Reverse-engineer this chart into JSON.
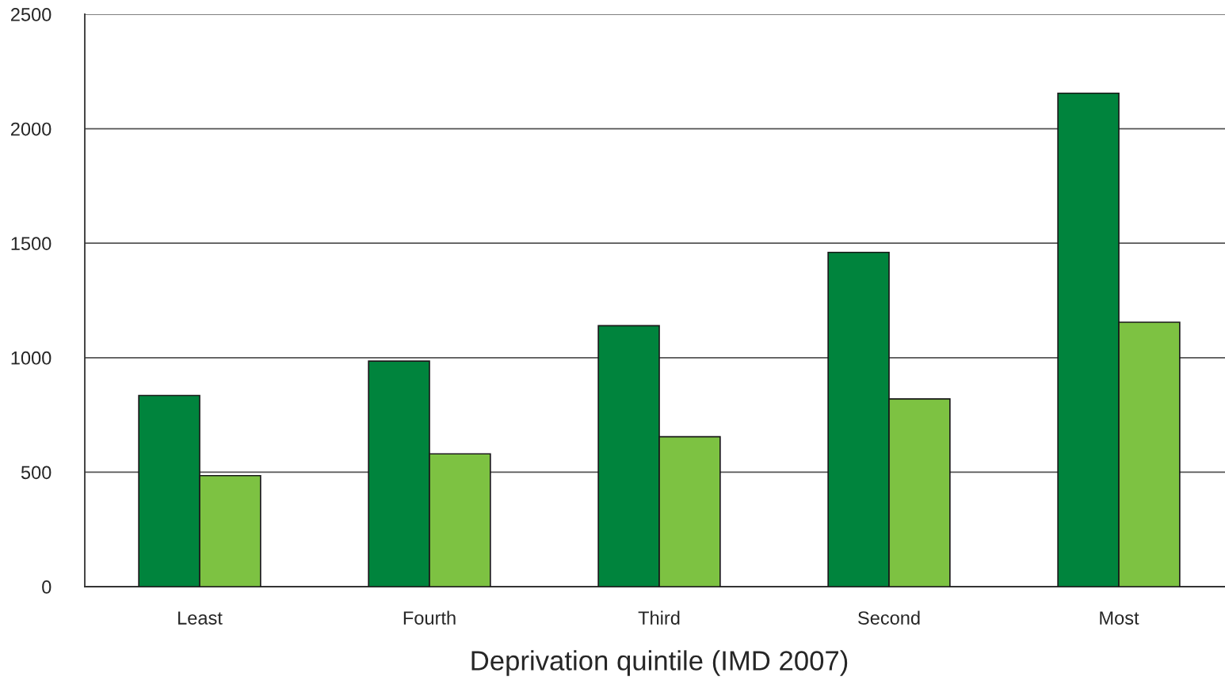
{
  "chart_data": {
    "type": "bar",
    "xlabel": "Deprivation quintile (IMD 2007)",
    "categories": [
      "Least",
      "Fourth",
      "Third",
      "Second",
      "Most"
    ],
    "series": [
      {
        "color": "#00843d",
        "values": [
          835,
          985,
          1140,
          1460,
          2155
        ]
      },
      {
        "color": "#7dc242",
        "values": [
          485,
          580,
          655,
          820,
          1155
        ]
      }
    ],
    "ylim": [
      0,
      2500
    ],
    "yticks": [
      0,
      500,
      1000,
      1500,
      2000,
      2500
    ],
    "grid": "y"
  }
}
